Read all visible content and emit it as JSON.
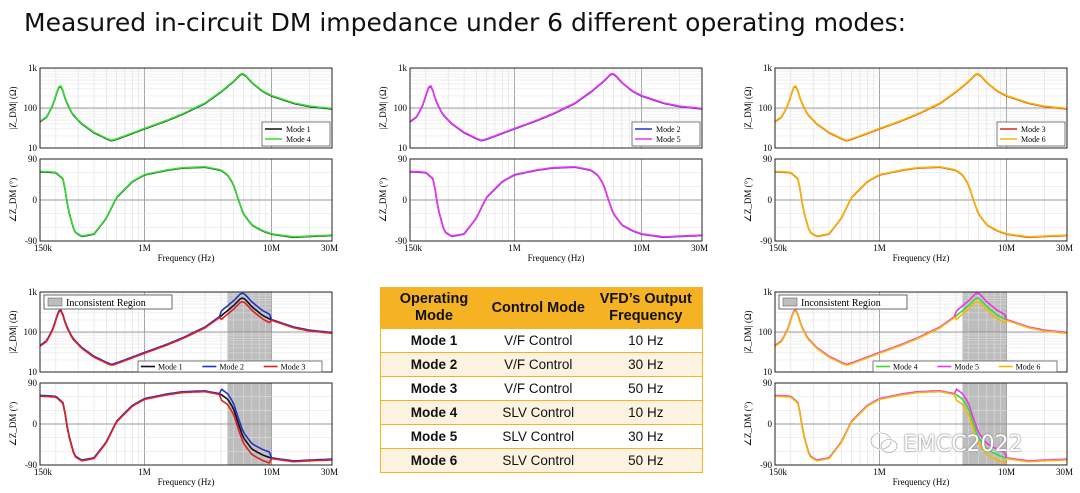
{
  "slide": {
    "title": "Measured in-circuit DM impedance under 6 different operating modes:"
  },
  "table": {
    "headers": [
      "Operating Mode",
      "Control Mode",
      "VFD’s Output Frequency"
    ],
    "rows": [
      [
        "Mode 1",
        "V/F Control",
        "10 Hz"
      ],
      [
        "Mode 2",
        "V/F Control",
        "30 Hz"
      ],
      [
        "Mode 3",
        "V/F Control",
        "50 Hz"
      ],
      [
        "Mode 4",
        "SLV Control",
        "10 Hz"
      ],
      [
        "Mode 5",
        "SLV Control",
        "30 Hz"
      ],
      [
        "Mode 6",
        "SLV Control",
        "50 Hz"
      ]
    ],
    "header_color": "#f5b323"
  },
  "watermark": "EMCC2022",
  "colors": {
    "mode1": "#111111",
    "mode2": "#2233cc",
    "mode3": "#e02020",
    "mode4": "#33dd33",
    "mode5": "#ee33ee",
    "mode6": "#f5b800",
    "inconsistent_fill": "#bdbdbd"
  },
  "chart_data": [
    {
      "type": "line",
      "panel": "top-left",
      "xlabel": "Frequency (Hz)",
      "xscale": "log",
      "xlim": [
        150000,
        30000000
      ],
      "xticks": [
        "150k",
        "1M",
        "10M",
        "30M"
      ],
      "mag": {
        "ylabel": "|Z_DM| (Ω)",
        "yscale": "log",
        "ylim": [
          10,
          1000
        ],
        "yticks": [
          "1k",
          "100",
          "10"
        ]
      },
      "phase": {
        "ylabel": "∠Z_DM (°)",
        "ylim": [
          -90,
          90
        ],
        "yticks": [
          "90",
          "0",
          "-90"
        ]
      },
      "series": [
        {
          "name": "Mode 1",
          "color": "#111111"
        },
        {
          "name": "Mode 4",
          "color": "#33dd33"
        }
      ],
      "legend": "bottom-right of magnitude plot",
      "grid": true
    },
    {
      "type": "line",
      "panel": "top-middle",
      "xlabel": "Frequency (Hz)",
      "xscale": "log",
      "xlim": [
        150000,
        30000000
      ],
      "xticks": [
        "150k",
        "1M",
        "10M",
        "30M"
      ],
      "mag": {
        "ylabel": "|Z_DM| (Ω)",
        "yscale": "log",
        "ylim": [
          10,
          1000
        ],
        "yticks": [
          "1k",
          "100",
          "10"
        ]
      },
      "phase": {
        "ylabel": "∠Z_DM (°)",
        "ylim": [
          -90,
          90
        ],
        "yticks": [
          "90",
          "0",
          "-90"
        ]
      },
      "series": [
        {
          "name": "Mode 2",
          "color": "#2233cc"
        },
        {
          "name": "Mode 5",
          "color": "#ee33ee"
        }
      ],
      "legend": "bottom-right of magnitude plot",
      "grid": true
    },
    {
      "type": "line",
      "panel": "top-right",
      "xlabel": "Frequency (Hz)",
      "xscale": "log",
      "xlim": [
        150000,
        30000000
      ],
      "xticks": [
        "150k",
        "1M",
        "10M",
        "30M"
      ],
      "mag": {
        "ylabel": "|Z_DM| (Ω)",
        "yscale": "log",
        "ylim": [
          10,
          1000
        ],
        "yticks": [
          "1k",
          "100",
          "10"
        ]
      },
      "phase": {
        "ylabel": "∠Z_DM (°)",
        "ylim": [
          -90,
          90
        ],
        "yticks": [
          "90",
          "0",
          "-90"
        ]
      },
      "series": [
        {
          "name": "Mode 3",
          "color": "#e02020"
        },
        {
          "name": "Mode 6",
          "color": "#f5b800"
        }
      ],
      "legend": "bottom-right of magnitude plot",
      "grid": true
    },
    {
      "type": "line",
      "panel": "bottom-left",
      "xlabel": "Frequency (Hz)",
      "xscale": "log",
      "xlim": [
        150000,
        30000000
      ],
      "xticks": [
        "150k",
        "1M",
        "10M",
        "30M"
      ],
      "mag": {
        "ylabel": "|Z_DM| (Ω)",
        "yscale": "log",
        "ylim": [
          10,
          1000
        ],
        "yticks": [
          "1k",
          "100",
          "10"
        ]
      },
      "phase": {
        "ylabel": "∠Z_DM (°)",
        "ylim": [
          -90,
          90
        ],
        "yticks": [
          "90",
          "0",
          "-90"
        ]
      },
      "series": [
        {
          "name": "Mode 1",
          "color": "#111111"
        },
        {
          "name": "Mode 2",
          "color": "#2233cc"
        },
        {
          "name": "Mode 3",
          "color": "#e02020"
        }
      ],
      "legend": "bottom of magnitude plot",
      "annotation": {
        "label": "Inconsistent Region",
        "x_range": [
          4500000,
          10000000
        ]
      },
      "grid": true
    },
    {
      "type": "line",
      "panel": "bottom-right",
      "xlabel": "Frequency (Hz)",
      "xscale": "log",
      "xlim": [
        150000,
        30000000
      ],
      "xticks": [
        "150k",
        "1M",
        "10M",
        "30M"
      ],
      "mag": {
        "ylabel": "|Z_DM| (Ω)",
        "yscale": "log",
        "ylim": [
          10,
          1000
        ],
        "yticks": [
          "1k",
          "100",
          "10"
        ]
      },
      "phase": {
        "ylabel": "∠Z_DM (°)",
        "ylim": [
          -90,
          90
        ],
        "yticks": [
          "90",
          "0",
          "-90"
        ]
      },
      "series": [
        {
          "name": "Mode 4",
          "color": "#33dd33"
        },
        {
          "name": "Mode 5",
          "color": "#ee33ee"
        },
        {
          "name": "Mode 6",
          "color": "#f5b800"
        }
      ],
      "legend": "bottom of magnitude plot",
      "annotation": {
        "label": "Inconsistent Region",
        "x_range": [
          4500000,
          10000000
        ]
      },
      "grid": true
    }
  ],
  "curves": {
    "mag": [
      [
        150000,
        45
      ],
      [
        170000,
        60
      ],
      [
        190000,
        120
      ],
      [
        205000,
        260
      ],
      [
        215000,
        380
      ],
      [
        225000,
        300
      ],
      [
        240000,
        150
      ],
      [
        270000,
        70
      ],
      [
        320000,
        40
      ],
      [
        400000,
        24
      ],
      [
        500000,
        17
      ],
      [
        550000,
        15
      ],
      [
        620000,
        17
      ],
      [
        800000,
        23
      ],
      [
        1000000,
        30
      ],
      [
        1500000,
        48
      ],
      [
        2000000,
        70
      ],
      [
        3000000,
        130
      ],
      [
        4000000,
        250
      ],
      [
        5000000,
        450
      ],
      [
        5800000,
        720
      ],
      [
        6200000,
        660
      ],
      [
        7000000,
        430
      ],
      [
        8500000,
        260
      ],
      [
        10000000,
        200
      ],
      [
        15000000,
        130
      ],
      [
        20000000,
        108
      ],
      [
        30000000,
        95
      ]
    ],
    "phase": [
      [
        150000,
        62
      ],
      [
        200000,
        60
      ],
      [
        230000,
        45
      ],
      [
        250000,
        -20
      ],
      [
        280000,
        -70
      ],
      [
        320000,
        -80
      ],
      [
        400000,
        -75
      ],
      [
        500000,
        -40
      ],
      [
        600000,
        5
      ],
      [
        800000,
        40
      ],
      [
        1000000,
        55
      ],
      [
        1500000,
        65
      ],
      [
        2000000,
        70
      ],
      [
        3000000,
        72
      ],
      [
        4000000,
        65
      ],
      [
        4500000,
        55
      ],
      [
        5000000,
        35
      ],
      [
        5500000,
        0
      ],
      [
        6000000,
        -30
      ],
      [
        7000000,
        -55
      ],
      [
        8500000,
        -68
      ],
      [
        10000000,
        -75
      ],
      [
        15000000,
        -82
      ],
      [
        20000000,
        -80
      ],
      [
        30000000,
        -78
      ]
    ]
  }
}
